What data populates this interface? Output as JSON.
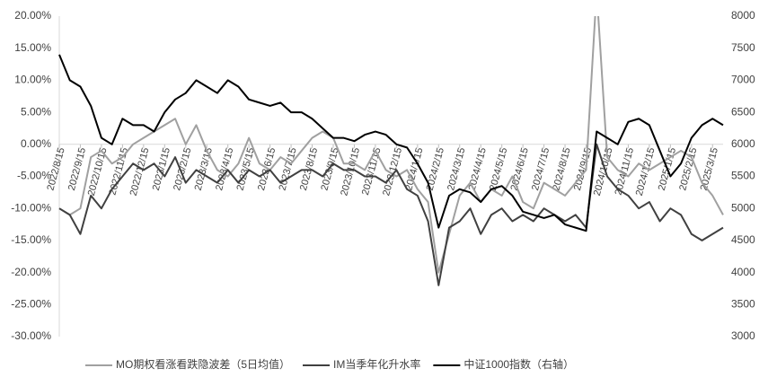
{
  "chart_data": {
    "type": "line",
    "categories": [
      "2022/8/15",
      null,
      "2022/9/15",
      null,
      "2022/10/15",
      null,
      "2022/11/15",
      null,
      "2022/12/15",
      null,
      "2023/1/15",
      null,
      "2023/2/15",
      null,
      "2023/3/15",
      null,
      "2023/4/15",
      null,
      "2023/5/15",
      null,
      "2023/6/15",
      null,
      "2023/7/15",
      null,
      "2023/8/15",
      null,
      "2023/9/15",
      null,
      "2023/10/15",
      null,
      "2023/11/15",
      null,
      "2023/12/15",
      null,
      "2024/1/15",
      null,
      "2024/2/15",
      null,
      "2024/3/15",
      null,
      "2024/4/15",
      null,
      "2024/5/15",
      null,
      "2024/6/15",
      null,
      "2024/7/15",
      null,
      "2024/8/15",
      null,
      "2024/9/15",
      null,
      "2024/10/15",
      null,
      "2024/11/15",
      null,
      "2024/12/15",
      null,
      "2025/1/15",
      null,
      "2025/2/15",
      null,
      "2025/3/15",
      null
    ],
    "series": [
      {
        "name": "MO期权看涨看跌隐波差（5日均值）",
        "color": "#a0a0a0",
        "values": [
          -10,
          -11,
          -10,
          -2,
          -1,
          -3,
          -2,
          0,
          1,
          2,
          3,
          4,
          0,
          3,
          -1,
          -4,
          -5,
          -3,
          1,
          -3,
          -4,
          -2,
          -3,
          -1,
          1,
          2,
          1,
          -3,
          -3,
          -4,
          -1,
          -4,
          -5,
          -4,
          -7,
          -9,
          -20,
          -14,
          -8,
          -6,
          -9,
          -7,
          -8,
          -5,
          -9,
          -10,
          -6,
          -7,
          -8,
          -6,
          -4,
          24,
          -2,
          -4,
          -5,
          -3,
          -4,
          -3,
          -2,
          -1,
          -2,
          -6,
          -8,
          -11
        ]
      },
      {
        "name": "IM当季年化升水率",
        "color": "#404040",
        "values": [
          -10,
          -11,
          -14,
          -8,
          -10,
          -7,
          -5,
          -3,
          -4,
          -3,
          -5,
          -2,
          -6,
          -4,
          -5,
          -6,
          -4,
          -6,
          -4,
          -5,
          -4,
          -6,
          -5,
          -4,
          -4,
          -5,
          -3,
          -4,
          -4,
          -5,
          -5,
          -6,
          -4,
          -7,
          -8,
          -12,
          -22,
          -13,
          -12,
          -10,
          -14,
          -11,
          -10,
          -12,
          -11,
          -12,
          -10,
          -11,
          -12,
          -11,
          -13,
          0,
          -5,
          -7,
          -8,
          -10,
          -9,
          -12,
          -10,
          -11,
          -14,
          -15,
          -14,
          -13
        ]
      },
      {
        "name": "中证1000指数（右轴）",
        "color": "#000000",
        "axis": "y2",
        "values": [
          7400,
          7000,
          6900,
          6600,
          6100,
          6000,
          6400,
          6300,
          6300,
          6200,
          6500,
          6700,
          6800,
          7000,
          6900,
          6800,
          7000,
          6900,
          6700,
          6650,
          6600,
          6650,
          6500,
          6500,
          6400,
          6250,
          6100,
          6100,
          6050,
          6150,
          6200,
          6150,
          6000,
          5950,
          5700,
          5400,
          4700,
          5200,
          5300,
          5250,
          5100,
          5300,
          5350,
          5200,
          4950,
          4900,
          4850,
          4900,
          4750,
          4700,
          4650,
          6200,
          6100,
          6000,
          6350,
          6400,
          6300,
          5900,
          5500,
          5700,
          6100,
          6300,
          6400,
          6300
        ]
      }
    ],
    "ylim": [
      -30,
      20
    ],
    "yticks": [
      {
        "value": 20,
        "label": "20.00%"
      },
      {
        "value": 15,
        "label": "15.00%"
      },
      {
        "value": 10,
        "label": "10.00%"
      },
      {
        "value": 5,
        "label": "5.00%"
      },
      {
        "value": 0,
        "label": "0.00%"
      },
      {
        "value": -5,
        "label": "-5.00%"
      },
      {
        "value": -10,
        "label": "-10.00%"
      },
      {
        "value": -15,
        "label": "-15.00%"
      },
      {
        "value": -20,
        "label": "-20.00%"
      },
      {
        "value": -25,
        "label": "-25.00%"
      },
      {
        "value": -30,
        "label": "-30.00%"
      }
    ],
    "y2lim": [
      3000,
      8000
    ],
    "y2ticks": [
      3000,
      3500,
      4000,
      4500,
      5000,
      5500,
      6000,
      6500,
      7000,
      7500,
      8000
    ],
    "legend": "bottom"
  }
}
